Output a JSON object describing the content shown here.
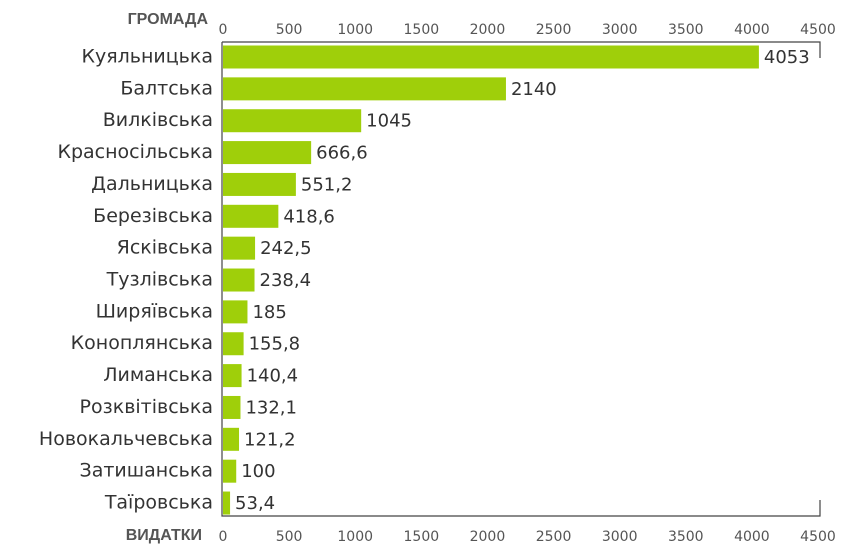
{
  "chart_data": {
    "type": "bar",
    "orientation": "horizontal",
    "y_label": "ГРОМАДА",
    "x_label": "ВИДАТКИ",
    "categories": [
      "Куяльницька",
      "Балтська",
      "Вилківська",
      "Красносільська",
      "Дальницька",
      "Березівська",
      "Ясківська",
      "Тузлівська",
      "Ширяївська",
      "Коноплянська",
      "Лиманська",
      "Розквітівська",
      "Новокальчевська",
      "Затишанська",
      "Таїровська"
    ],
    "values": [
      4053,
      2140,
      1045,
      666.6,
      551.2,
      418.6,
      242.5,
      238.4,
      185,
      155.8,
      140.4,
      132.1,
      121.2,
      100,
      53.4
    ],
    "value_labels": [
      "4053",
      "2140",
      "1045",
      "666,6",
      "551,2",
      "418,6",
      "242,5",
      "238,4",
      "185",
      "155,8",
      "140,4",
      "132,1",
      "121,2",
      "100",
      "53,4"
    ],
    "color": "#9fcf0a",
    "xlim": [
      0,
      4500
    ],
    "xticks": [
      0,
      500,
      1000,
      1500,
      2000,
      2500,
      3000,
      3500,
      4000,
      4500
    ],
    "grid": false
  }
}
